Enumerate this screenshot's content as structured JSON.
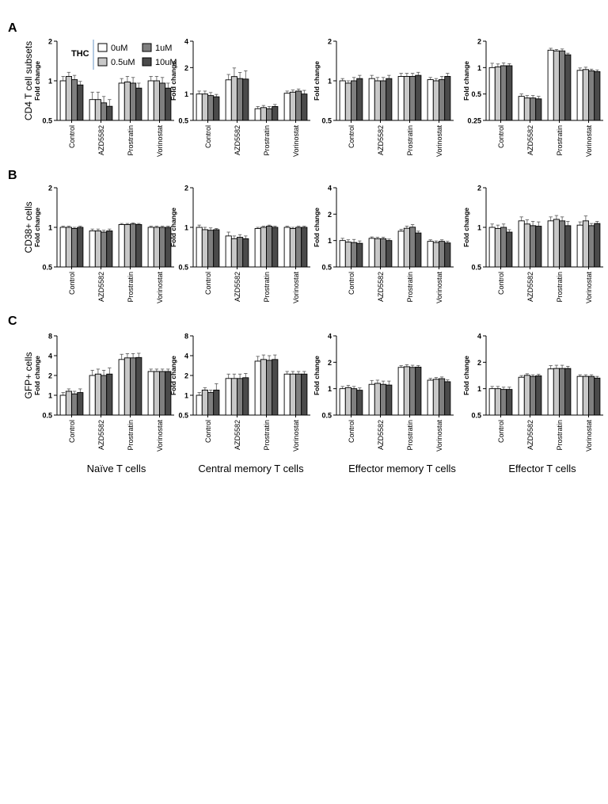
{
  "row_letters": [
    "A",
    "B",
    "C"
  ],
  "row_labels": [
    "CD4 T cell subsets",
    "CD38+ cells",
    "GFP+ cells"
  ],
  "y_title": "Fold change",
  "column_labels": [
    "Naïve T cells",
    "Central memory T cells",
    "Effector memory T cells",
    "Effector T cells"
  ],
  "legend": {
    "title": "THC",
    "entries": [
      {
        "label": "0uM",
        "color": "#ffffff"
      },
      {
        "label": "1uM",
        "color": "#7f7f7f"
      },
      {
        "label": "0.5uM",
        "color": "#c8c8c8"
      },
      {
        "label": "10uM",
        "color": "#4a4a4a"
      }
    ]
  },
  "chart_data": [
    {
      "type": "bar",
      "row": 0,
      "col": 0,
      "scale": "log2",
      "ylim": [
        0.5,
        2
      ],
      "yticks": [
        "0.5",
        "1",
        "2"
      ],
      "categories": [
        "Control",
        "AZD5582",
        "Prostratin",
        "Vorinostat"
      ],
      "series": [
        {
          "name": "0uM",
          "values": [
            1.0,
            0.72,
            0.96,
            1.0
          ]
        },
        {
          "name": "0.5uM",
          "values": [
            1.08,
            0.72,
            0.98,
            1.0
          ]
        },
        {
          "name": "1uM",
          "values": [
            1.02,
            0.68,
            0.96,
            0.96
          ]
        },
        {
          "name": "10uM",
          "values": [
            0.93,
            0.64,
            0.88,
            0.88
          ]
        }
      ],
      "errors": [
        [
          0.08,
          0.1,
          0.08,
          0.08
        ],
        [
          0.08,
          0.1,
          0.1,
          0.08
        ],
        [
          0.08,
          0.08,
          0.1,
          0.1
        ],
        [
          0.06,
          0.08,
          0.08,
          0.08
        ]
      ]
    },
    {
      "type": "bar",
      "row": 0,
      "col": 1,
      "scale": "log2",
      "ylim": [
        0.5,
        4
      ],
      "yticks": [
        "0.5",
        "1",
        "2",
        "4"
      ],
      "categories": [
        "Control",
        "AZD5582",
        "Prostratin",
        "Vorinostat"
      ],
      "series": [
        {
          "name": "0uM",
          "values": [
            1.0,
            1.45,
            0.68,
            1.02
          ]
        },
        {
          "name": "0.5uM",
          "values": [
            1.0,
            1.58,
            0.7,
            1.05
          ]
        },
        {
          "name": "1uM",
          "values": [
            0.96,
            1.5,
            0.68,
            1.08
          ]
        },
        {
          "name": "10uM",
          "values": [
            0.93,
            1.48,
            0.72,
            1.0
          ]
        }
      ],
      "errors": [
        [
          0.08,
          0.22,
          0.04,
          0.06
        ],
        [
          0.08,
          0.4,
          0.04,
          0.06
        ],
        [
          0.08,
          0.26,
          0.04,
          0.06
        ],
        [
          0.06,
          0.36,
          0.04,
          0.1
        ]
      ]
    },
    {
      "type": "bar",
      "row": 0,
      "col": 2,
      "scale": "log2",
      "ylim": [
        0.5,
        2
      ],
      "yticks": [
        "0.5",
        "1",
        "2"
      ],
      "categories": [
        "Control",
        "AZD5582",
        "Prostratin",
        "Vorinostat"
      ],
      "series": [
        {
          "name": "0uM",
          "values": [
            1.0,
            1.04,
            1.08,
            1.02
          ]
        },
        {
          "name": "0.5uM",
          "values": [
            0.96,
            1.0,
            1.08,
            1.0
          ]
        },
        {
          "name": "1uM",
          "values": [
            1.0,
            1.0,
            1.08,
            1.02
          ]
        },
        {
          "name": "10uM",
          "values": [
            1.04,
            1.04,
            1.1,
            1.08
          ]
        }
      ],
      "errors": [
        [
          0.04,
          0.06,
          0.06,
          0.04
        ],
        [
          0.04,
          0.06,
          0.06,
          0.04
        ],
        [
          0.06,
          0.06,
          0.06,
          0.06
        ],
        [
          0.06,
          0.06,
          0.06,
          0.06
        ]
      ]
    },
    {
      "type": "bar",
      "row": 0,
      "col": 3,
      "scale": "log2",
      "ylim": [
        0.25,
        2
      ],
      "yticks": [
        "0.25",
        "0.5",
        "1",
        "2"
      ],
      "categories": [
        "Control",
        "AZD5582",
        "Prostratin",
        "Vorinostat"
      ],
      "series": [
        {
          "name": "0uM",
          "values": [
            1.0,
            0.47,
            1.58,
            0.93
          ]
        },
        {
          "name": "0.5uM",
          "values": [
            1.02,
            0.45,
            1.55,
            0.95
          ]
        },
        {
          "name": "1uM",
          "values": [
            1.05,
            0.45,
            1.55,
            0.92
          ]
        },
        {
          "name": "10uM",
          "values": [
            1.05,
            0.44,
            1.4,
            0.9
          ]
        }
      ],
      "errors": [
        [
          0.12,
          0.03,
          0.08,
          0.06
        ],
        [
          0.08,
          0.03,
          0.06,
          0.06
        ],
        [
          0.08,
          0.03,
          0.08,
          0.04
        ],
        [
          0.06,
          0.03,
          0.06,
          0.04
        ]
      ]
    },
    {
      "type": "bar",
      "row": 1,
      "col": 0,
      "scale": "log2",
      "ylim": [
        0.5,
        2
      ],
      "yticks": [
        "0.5",
        "1",
        "2"
      ],
      "categories": [
        "Control",
        "AZD5582",
        "Prostratin",
        "Vorinostat"
      ],
      "series": [
        {
          "name": "0uM",
          "values": [
            1.0,
            0.94,
            1.05,
            1.0
          ]
        },
        {
          "name": "0.5uM",
          "values": [
            1.0,
            0.94,
            1.05,
            1.0
          ]
        },
        {
          "name": "1uM",
          "values": [
            0.98,
            0.92,
            1.06,
            1.0
          ]
        },
        {
          "name": "10uM",
          "values": [
            1.0,
            0.94,
            1.05,
            1.0
          ]
        }
      ],
      "errors": [
        [
          0.02,
          0.03,
          0.02,
          0.02
        ],
        [
          0.02,
          0.03,
          0.02,
          0.02
        ],
        [
          0.02,
          0.03,
          0.02,
          0.02
        ],
        [
          0.02,
          0.03,
          0.02,
          0.02
        ]
      ]
    },
    {
      "type": "bar",
      "row": 1,
      "col": 1,
      "scale": "log2",
      "ylim": [
        0.5,
        2
      ],
      "yticks": [
        "0.5",
        "1",
        "2"
      ],
      "categories": [
        "Control",
        "AZD5582",
        "Prostratin",
        "Vorinostat"
      ],
      "series": [
        {
          "name": "0uM",
          "values": [
            1.0,
            0.86,
            0.98,
            1.0
          ]
        },
        {
          "name": "0.5uM",
          "values": [
            0.96,
            0.82,
            1.0,
            0.98
          ]
        },
        {
          "name": "1uM",
          "values": [
            0.95,
            0.84,
            1.02,
            1.0
          ]
        },
        {
          "name": "10uM",
          "values": [
            0.96,
            0.82,
            1.0,
            1.0
          ]
        }
      ],
      "errors": [
        [
          0.04,
          0.06,
          0.02,
          0.02
        ],
        [
          0.04,
          0.04,
          0.02,
          0.02
        ],
        [
          0.04,
          0.04,
          0.02,
          0.02
        ],
        [
          0.02,
          0.04,
          0.02,
          0.02
        ]
      ]
    },
    {
      "type": "bar",
      "row": 1,
      "col": 2,
      "scale": "log2",
      "ylim": [
        0.5,
        4
      ],
      "yticks": [
        "0.5",
        "1",
        "2",
        "4"
      ],
      "categories": [
        "Control",
        "AZD5582",
        "Prostratin",
        "Vorinostat"
      ],
      "series": [
        {
          "name": "0uM",
          "values": [
            1.0,
            1.06,
            1.28,
            0.98
          ]
        },
        {
          "name": "0.5uM",
          "values": [
            0.96,
            1.05,
            1.38,
            0.95
          ]
        },
        {
          "name": "1uM",
          "values": [
            0.95,
            1.05,
            1.42,
            0.98
          ]
        },
        {
          "name": "10uM",
          "values": [
            0.93,
            1.0,
            1.22,
            0.94
          ]
        }
      ],
      "errors": [
        [
          0.06,
          0.04,
          0.06,
          0.04
        ],
        [
          0.06,
          0.04,
          0.08,
          0.04
        ],
        [
          0.08,
          0.04,
          0.1,
          0.04
        ],
        [
          0.06,
          0.04,
          0.06,
          0.04
        ]
      ]
    },
    {
      "type": "bar",
      "row": 1,
      "col": 3,
      "scale": "log2",
      "ylim": [
        0.5,
        2
      ],
      "yticks": [
        "0.5",
        "1",
        "2"
      ],
      "categories": [
        "Control",
        "AZD5582",
        "Prostratin",
        "Vorinostat"
      ],
      "series": [
        {
          "name": "0uM",
          "values": [
            1.0,
            1.12,
            1.12,
            1.04
          ]
        },
        {
          "name": "0.5uM",
          "values": [
            0.98,
            1.06,
            1.15,
            1.12
          ]
        },
        {
          "name": "1uM",
          "values": [
            1.0,
            1.03,
            1.12,
            1.03
          ]
        },
        {
          "name": "10uM",
          "values": [
            0.92,
            1.02,
            1.03,
            1.07
          ]
        }
      ],
      "errors": [
        [
          0.06,
          0.08,
          0.08,
          0.06
        ],
        [
          0.06,
          0.08,
          0.08,
          0.1
        ],
        [
          0.06,
          0.08,
          0.08,
          0.04
        ],
        [
          0.04,
          0.08,
          0.08,
          0.04
        ]
      ]
    },
    {
      "type": "bar",
      "row": 2,
      "col": 0,
      "scale": "log2",
      "ylim": [
        0.5,
        8
      ],
      "yticks": [
        "0.5",
        "1",
        "2",
        "4",
        "8"
      ],
      "categories": [
        "Control",
        "AZD5582",
        "Prostratin",
        "Vorinostat"
      ],
      "series": [
        {
          "name": "0uM",
          "values": [
            1.0,
            2.0,
            3.5,
            2.3
          ]
        },
        {
          "name": "0.5uM",
          "values": [
            1.15,
            2.1,
            3.7,
            2.3
          ]
        },
        {
          "name": "1uM",
          "values": [
            1.05,
            2.0,
            3.7,
            2.3
          ]
        },
        {
          "name": "10uM",
          "values": [
            1.1,
            2.1,
            3.75,
            2.3
          ]
        }
      ],
      "errors": [
        [
          0.1,
          0.4,
          0.7,
          0.2
        ],
        [
          0.1,
          0.4,
          0.6,
          0.2
        ],
        [
          0.1,
          0.4,
          0.6,
          0.2
        ],
        [
          0.15,
          0.5,
          0.6,
          0.2
        ]
      ]
    },
    {
      "type": "bar",
      "row": 2,
      "col": 1,
      "scale": "log2",
      "ylim": [
        0.5,
        8
      ],
      "yticks": [
        "0.5",
        "1",
        "2",
        "4",
        "8"
      ],
      "categories": [
        "Control",
        "AZD5582",
        "Prostratin",
        "Vorinostat"
      ],
      "series": [
        {
          "name": "0uM",
          "values": [
            1.0,
            1.8,
            3.3,
            2.1
          ]
        },
        {
          "name": "0.5uM",
          "values": [
            1.2,
            1.8,
            3.5,
            2.1
          ]
        },
        {
          "name": "1uM",
          "values": [
            1.1,
            1.8,
            3.4,
            2.1
          ]
        },
        {
          "name": "10uM",
          "values": [
            1.2,
            1.85,
            3.5,
            2.1
          ]
        }
      ],
      "errors": [
        [
          0.1,
          0.3,
          0.6,
          0.2
        ],
        [
          0.1,
          0.3,
          0.6,
          0.2
        ],
        [
          0.1,
          0.3,
          0.6,
          0.2
        ],
        [
          0.3,
          0.3,
          0.6,
          0.2
        ]
      ]
    },
    {
      "type": "bar",
      "row": 2,
      "col": 2,
      "scale": "log2",
      "ylim": [
        0.5,
        4
      ],
      "yticks": [
        "0.5",
        "1",
        "2",
        "4"
      ],
      "categories": [
        "Control",
        "AZD5582",
        "Prostratin",
        "Vorinostat"
      ],
      "series": [
        {
          "name": "0uM",
          "values": [
            1.0,
            1.12,
            1.75,
            1.25
          ]
        },
        {
          "name": "0.5uM",
          "values": [
            1.03,
            1.15,
            1.78,
            1.28
          ]
        },
        {
          "name": "1uM",
          "values": [
            1.0,
            1.12,
            1.75,
            1.3
          ]
        },
        {
          "name": "10uM",
          "values": [
            0.96,
            1.1,
            1.76,
            1.2
          ]
        }
      ],
      "errors": [
        [
          0.06,
          0.12,
          0.08,
          0.06
        ],
        [
          0.06,
          0.1,
          0.1,
          0.06
        ],
        [
          0.06,
          0.1,
          0.1,
          0.06
        ],
        [
          0.06,
          0.12,
          0.08,
          0.06
        ]
      ]
    },
    {
      "type": "bar",
      "row": 2,
      "col": 3,
      "scale": "log2",
      "ylim": [
        0.5,
        4
      ],
      "yticks": [
        "0.5",
        "1",
        "2",
        "4"
      ],
      "categories": [
        "Control",
        "AZD5582",
        "Prostratin",
        "Vorinostat"
      ],
      "series": [
        {
          "name": "0uM",
          "values": [
            1.0,
            1.35,
            1.68,
            1.38
          ]
        },
        {
          "name": "0.5uM",
          "values": [
            1.0,
            1.42,
            1.7,
            1.38
          ]
        },
        {
          "name": "1uM",
          "values": [
            0.98,
            1.38,
            1.7,
            1.38
          ]
        },
        {
          "name": "10uM",
          "values": [
            0.98,
            1.4,
            1.7,
            1.32
          ]
        }
      ],
      "errors": [
        [
          0.06,
          0.06,
          0.15,
          0.06
        ],
        [
          0.06,
          0.06,
          0.15,
          0.06
        ],
        [
          0.06,
          0.06,
          0.15,
          0.06
        ],
        [
          0.06,
          0.06,
          0.1,
          0.06
        ]
      ]
    }
  ]
}
